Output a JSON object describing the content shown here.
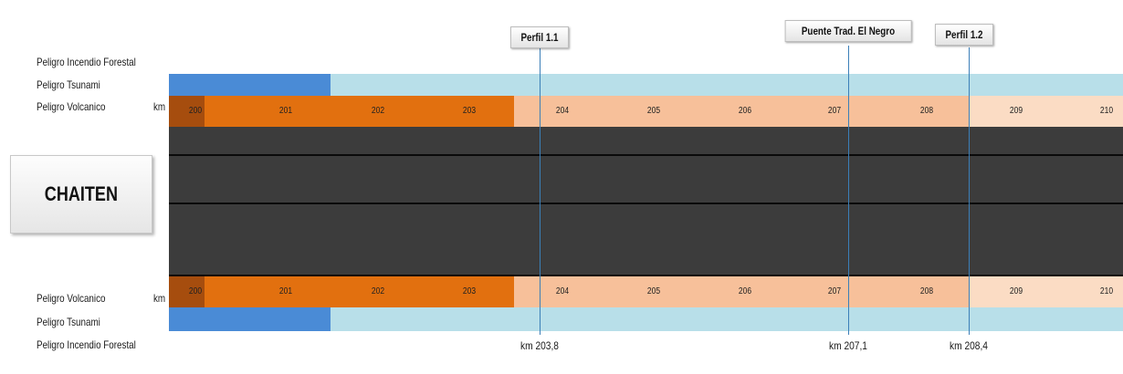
{
  "town": "CHAITEN",
  "km_unit": "km",
  "hazards_top": [
    "Peligro Incendio Forestal",
    "Peligro Tsunami",
    "Peligro Volcanico"
  ],
  "hazards_bottom": [
    "Peligro Volcanico",
    "Peligro Tsunami",
    "Peligro Incendio Forestal"
  ],
  "km_ticks": [
    "200",
    "201",
    "202",
    "203",
    "204",
    "205",
    "206",
    "207",
    "208",
    "209",
    "210"
  ],
  "colors": {
    "tsunami_high": "#4a8bd6",
    "tsunami_low": "#b8dfe9",
    "volcanic_very_high": "#a64d0e",
    "volcanic_high": "#e2700f",
    "volcanic_medium": "#f7c09a",
    "volcanic_low": "#fbdcc4",
    "road": "#3c3c3c",
    "marker_line": "#3b7fb8"
  },
  "markers": [
    {
      "name": "Perfil 1.1",
      "km": "km 203,8"
    },
    {
      "name": "Puente Trad. El Negro",
      "km": "km 207,1"
    },
    {
      "name": "Perfil 1.2",
      "km": "km 208,4"
    }
  ]
}
